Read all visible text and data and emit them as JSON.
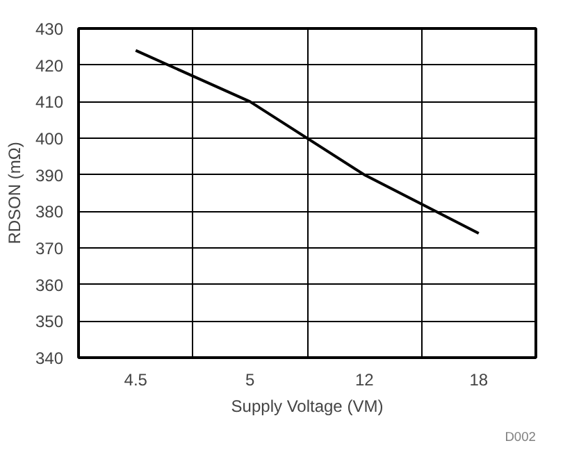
{
  "chart_data": {
    "type": "line",
    "categories": [
      "4.5",
      "5",
      "12",
      "18"
    ],
    "series": [
      {
        "color": "#000000",
        "values": [
          424,
          410,
          390,
          374
        ]
      }
    ],
    "xlabel": "Supply Voltage (VM)",
    "ylabel": "RDSON (mΩ)",
    "ylim": [
      340,
      430
    ],
    "yticks": [
      340,
      350,
      360,
      370,
      380,
      390,
      400,
      410,
      420,
      430
    ],
    "grid": true,
    "annotations": [
      "D002"
    ]
  }
}
